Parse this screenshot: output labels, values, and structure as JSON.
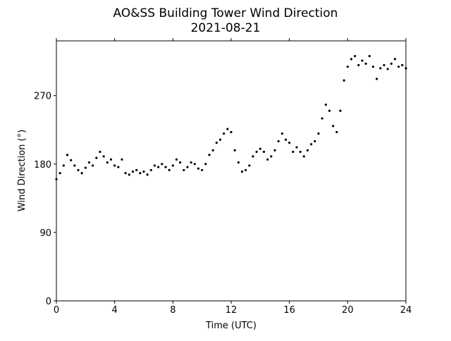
{
  "chart_data": {
    "type": "scatter",
    "title": "AO&SS Building Tower Wind Direction",
    "subtitle": "2021-08-21",
    "x_label": "Time (UTC)",
    "y_label": "Wind Direction (°)",
    "color": "#000000",
    "xlim": [
      0,
      24
    ],
    "xticks": [
      0,
      4,
      8,
      12,
      16,
      20,
      24
    ],
    "ylim": [
      0,
      342
    ],
    "yticks": [
      0,
      90,
      180,
      270
    ],
    "x": [
      0,
      0.25,
      0.5,
      0.75,
      1,
      1.25,
      1.5,
      1.75,
      2,
      2.25,
      2.5,
      2.75,
      3,
      3.25,
      3.5,
      3.75,
      4,
      4.25,
      4.5,
      4.75,
      5,
      5.25,
      5.5,
      5.75,
      6,
      6.25,
      6.5,
      6.75,
      7,
      7.25,
      7.5,
      7.75,
      8,
      8.25,
      8.5,
      8.75,
      9,
      9.25,
      9.5,
      9.75,
      10,
      10.25,
      10.5,
      10.75,
      11,
      11.25,
      11.5,
      11.75,
      12,
      12.25,
      12.5,
      12.75,
      13,
      13.25,
      13.5,
      13.75,
      14,
      14.25,
      14.5,
      14.75,
      15,
      15.25,
      15.5,
      15.75,
      16,
      16.25,
      16.5,
      16.75,
      17,
      17.25,
      17.5,
      17.75,
      18,
      18.25,
      18.5,
      18.75,
      19,
      19.25,
      19.5,
      19.75,
      20,
      20.25,
      20.5,
      20.75,
      21,
      21.25,
      21.5,
      21.75,
      22,
      22.25,
      22.5,
      22.75,
      23,
      23.25,
      23.5,
      23.75,
      24
    ],
    "values": [
      160,
      168,
      178,
      192,
      185,
      178,
      172,
      168,
      175,
      182,
      178,
      188,
      196,
      190,
      182,
      186,
      178,
      176,
      186,
      168,
      166,
      170,
      172,
      168,
      170,
      166,
      172,
      178,
      176,
      180,
      176,
      172,
      178,
      186,
      182,
      172,
      176,
      182,
      180,
      174,
      172,
      180,
      192,
      198,
      208,
      212,
      220,
      226,
      222,
      198,
      182,
      170,
      172,
      178,
      190,
      196,
      200,
      196,
      186,
      190,
      198,
      210,
      220,
      212,
      208,
      196,
      202,
      196,
      190,
      198,
      206,
      210,
      220,
      240,
      258,
      250,
      230,
      222,
      250,
      290,
      308,
      318,
      322,
      310,
      316,
      312,
      322,
      308,
      292,
      306,
      310,
      305,
      312,
      318,
      308,
      310,
      306
    ]
  }
}
